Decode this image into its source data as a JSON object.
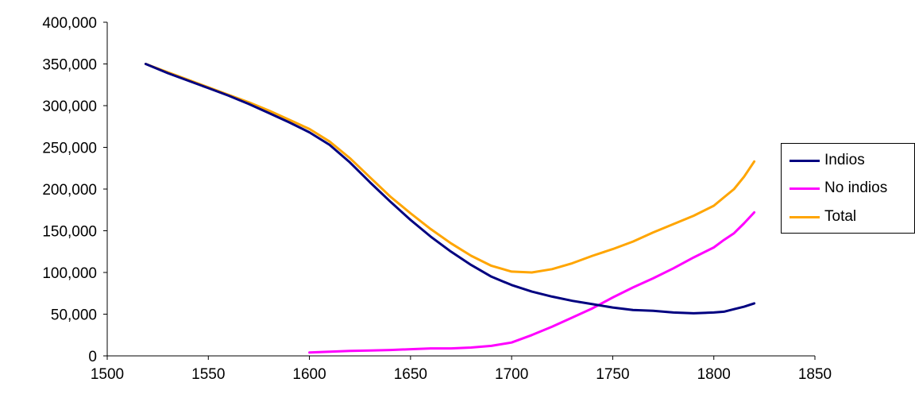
{
  "chart_data": {
    "type": "line",
    "title": "",
    "xlabel": "",
    "ylabel": "",
    "xlim": [
      1500,
      1850
    ],
    "ylim": [
      0,
      400000
    ],
    "x_ticks": [
      1500,
      1550,
      1600,
      1650,
      1700,
      1750,
      1800,
      1850
    ],
    "x_tick_labels": [
      "1500",
      "1550",
      "1600",
      "1650",
      "1700",
      "1750",
      "1800",
      "1850"
    ],
    "y_ticks": [
      0,
      50000,
      100000,
      150000,
      200000,
      250000,
      300000,
      350000,
      400000
    ],
    "y_tick_labels": [
      "0",
      "50,000",
      "100,000",
      "150,000",
      "200,000",
      "250,000",
      "300,000",
      "350,000",
      "400,000"
    ],
    "grid": false,
    "legend_position": "right",
    "series": [
      {
        "name": "Indios",
        "color": "#000080",
        "points": [
          [
            1519,
            350000
          ],
          [
            1530,
            339000
          ],
          [
            1540,
            330000
          ],
          [
            1550,
            321000
          ],
          [
            1560,
            312000
          ],
          [
            1570,
            302000
          ],
          [
            1580,
            291000
          ],
          [
            1590,
            280000
          ],
          [
            1600,
            268000
          ],
          [
            1610,
            253000
          ],
          [
            1620,
            232000
          ],
          [
            1630,
            208000
          ],
          [
            1640,
            185000
          ],
          [
            1650,
            163000
          ],
          [
            1660,
            143000
          ],
          [
            1670,
            125000
          ],
          [
            1680,
            109000
          ],
          [
            1690,
            95000
          ],
          [
            1700,
            85000
          ],
          [
            1710,
            77000
          ],
          [
            1720,
            71000
          ],
          [
            1730,
            66000
          ],
          [
            1740,
            62000
          ],
          [
            1750,
            58000
          ],
          [
            1760,
            55000
          ],
          [
            1770,
            54000
          ],
          [
            1780,
            52000
          ],
          [
            1790,
            51000
          ],
          [
            1800,
            52000
          ],
          [
            1805,
            53000
          ],
          [
            1810,
            56000
          ],
          [
            1815,
            59000
          ],
          [
            1820,
            63000
          ]
        ]
      },
      {
        "name": "No indios",
        "color": "#ff00ff",
        "points": [
          [
            1600,
            4000
          ],
          [
            1610,
            5000
          ],
          [
            1620,
            6000
          ],
          [
            1630,
            6500
          ],
          [
            1640,
            7000
          ],
          [
            1650,
            8000
          ],
          [
            1660,
            9000
          ],
          [
            1670,
            9000
          ],
          [
            1680,
            10000
          ],
          [
            1690,
            12000
          ],
          [
            1700,
            16000
          ],
          [
            1710,
            25000
          ],
          [
            1720,
            35000
          ],
          [
            1730,
            46000
          ],
          [
            1740,
            57000
          ],
          [
            1750,
            70000
          ],
          [
            1760,
            82000
          ],
          [
            1770,
            93000
          ],
          [
            1780,
            105000
          ],
          [
            1790,
            118000
          ],
          [
            1800,
            130000
          ],
          [
            1805,
            139000
          ],
          [
            1810,
            147000
          ],
          [
            1815,
            159000
          ],
          [
            1820,
            172000
          ]
        ]
      },
      {
        "name": "Total",
        "color": "#ffa500",
        "points": [
          [
            1519,
            350000
          ],
          [
            1530,
            340000
          ],
          [
            1540,
            331000
          ],
          [
            1550,
            322000
          ],
          [
            1560,
            313000
          ],
          [
            1570,
            304000
          ],
          [
            1580,
            294000
          ],
          [
            1590,
            283000
          ],
          [
            1600,
            272000
          ],
          [
            1610,
            257000
          ],
          [
            1620,
            237000
          ],
          [
            1630,
            214000
          ],
          [
            1640,
            191000
          ],
          [
            1650,
            171000
          ],
          [
            1660,
            152000
          ],
          [
            1670,
            135000
          ],
          [
            1680,
            120000
          ],
          [
            1690,
            108000
          ],
          [
            1700,
            101000
          ],
          [
            1710,
            100000
          ],
          [
            1720,
            104000
          ],
          [
            1730,
            111000
          ],
          [
            1740,
            120000
          ],
          [
            1750,
            128000
          ],
          [
            1760,
            137000
          ],
          [
            1770,
            148000
          ],
          [
            1780,
            158000
          ],
          [
            1790,
            168000
          ],
          [
            1800,
            180000
          ],
          [
            1805,
            190000
          ],
          [
            1810,
            200000
          ],
          [
            1815,
            215000
          ],
          [
            1820,
            233000
          ]
        ]
      }
    ]
  }
}
